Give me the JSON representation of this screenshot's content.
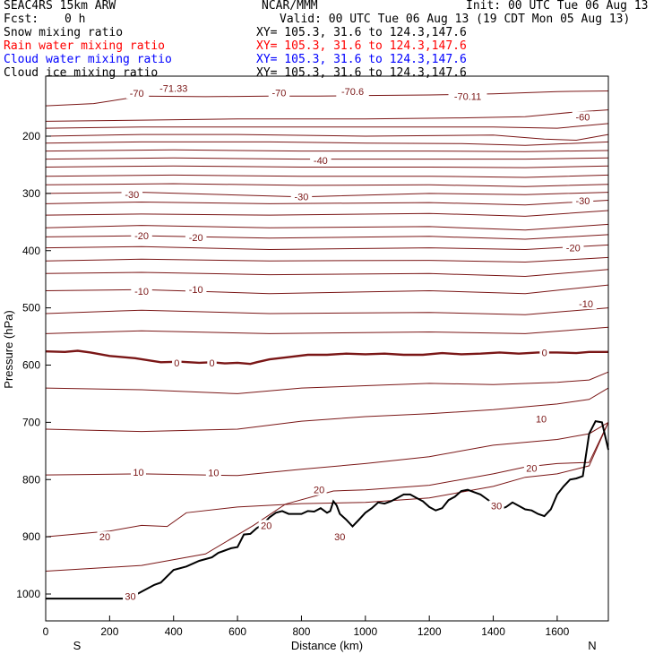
{
  "header": {
    "model": "SEAC4RS 15km ARW",
    "center": "NCAR/MMM",
    "init": "Init: 00 UTC Tue 06 Aug 13",
    "fcst_label": "Fcst:",
    "fcst_value": "0 h",
    "valid": "Valid: 00 UTC Tue 06 Aug 13 (19 CDT Mon 05 Aug 13)",
    "fields": [
      {
        "name": "Snow mixing ratio",
        "xy": "XY= 105.3, 31.6 to 124.3,147.6",
        "color": "#000000"
      },
      {
        "name": "Rain water mixing ratio",
        "xy": "XY= 105.3, 31.6 to 124.3,147.6",
        "color": "#ff0000"
      },
      {
        "name": "Cloud water mixing ratio",
        "xy": "XY= 105.3, 31.6 to 124.3,147.6",
        "color": "#0000ff"
      },
      {
        "name": "Cloud ice mixing ratio",
        "xy": "XY= 105.3, 31.6 to 124.3,147.6",
        "color": "#000000"
      }
    ]
  },
  "chart_data": {
    "type": "line",
    "xlabel": "Distance (km)",
    "ylabel": "Pressure (hPa)",
    "xlim": [
      0,
      1760
    ],
    "ylim": [
      1050,
      100
    ],
    "x_ticks": [
      0,
      200,
      400,
      600,
      800,
      1000,
      1200,
      1400,
      1600
    ],
    "y_ticks": [
      200,
      300,
      400,
      500,
      600,
      700,
      800,
      900,
      1000
    ],
    "y_tick_labels_visible": [
      "200",
      "300",
      "400",
      "500",
      "600",
      "700",
      "800",
      "900",
      "1000"
    ],
    "x_end_labels": {
      "left": "S",
      "right": "N"
    },
    "contour_color": "#7a1616",
    "terrain_color": "#000000",
    "contour_labels": [
      {
        "text": "-71.33",
        "x": 400,
        "p": 116
      },
      {
        "text": "-70",
        "x": 290,
        "p": 125
      },
      {
        "text": "-70",
        "x": 730,
        "p": 124
      },
      {
        "text": "-70.6",
        "x": 960,
        "p": 122
      },
      {
        "text": "-70.11",
        "x": 1320,
        "p": 130
      },
      {
        "text": "-70",
        "x": 285,
        "p": 125
      },
      {
        "text": "-60",
        "x": 1680,
        "p": 166
      },
      {
        "text": "-40",
        "x": 860,
        "p": 242
      },
      {
        "text": "-30",
        "x": 270,
        "p": 302
      },
      {
        "text": "-30",
        "x": 800,
        "p": 306
      },
      {
        "text": "-30",
        "x": 1680,
        "p": 313
      },
      {
        "text": "-20",
        "x": 300,
        "p": 374
      },
      {
        "text": "-20",
        "x": 470,
        "p": 377
      },
      {
        "text": "-20",
        "x": 1650,
        "p": 395
      },
      {
        "text": "-10",
        "x": 300,
        "p": 471
      },
      {
        "text": "-10",
        "x": 470,
        "p": 468
      },
      {
        "text": "-10",
        "x": 1690,
        "p": 493
      },
      {
        "text": "0",
        "x": 410,
        "p": 596
      },
      {
        "text": "0",
        "x": 520,
        "p": 596
      },
      {
        "text": "0",
        "x": 1560,
        "p": 578
      },
      {
        "text": "10",
        "x": 1550,
        "p": 694
      },
      {
        "text": "10",
        "x": 290,
        "p": 787
      },
      {
        "text": "10",
        "x": 525,
        "p": 788
      },
      {
        "text": "20",
        "x": 1520,
        "p": 780
      },
      {
        "text": "20",
        "x": 855,
        "p": 818
      },
      {
        "text": "20",
        "x": 690,
        "p": 880
      },
      {
        "text": "20",
        "x": 185,
        "p": 900
      },
      {
        "text": "30",
        "x": 1410,
        "p": 846
      },
      {
        "text": "30",
        "x": 920,
        "p": 900
      },
      {
        "text": "30",
        "x": 265,
        "p": 1004
      }
    ],
    "zero_isotherm": [
      [
        0,
        576
      ],
      [
        60,
        577
      ],
      [
        100,
        575
      ],
      [
        140,
        578
      ],
      [
        200,
        584
      ],
      [
        280,
        588
      ],
      [
        360,
        595
      ],
      [
        420,
        594
      ],
      [
        480,
        596
      ],
      [
        520,
        595
      ],
      [
        560,
        597
      ],
      [
        600,
        596
      ],
      [
        640,
        598
      ],
      [
        660,
        595
      ],
      [
        700,
        590
      ],
      [
        760,
        586
      ],
      [
        820,
        582
      ],
      [
        880,
        582
      ],
      [
        940,
        580
      ],
      [
        1000,
        581
      ],
      [
        1060,
        580
      ],
      [
        1120,
        582
      ],
      [
        1180,
        582
      ],
      [
        1240,
        579
      ],
      [
        1300,
        581
      ],
      [
        1360,
        580
      ],
      [
        1420,
        578
      ],
      [
        1480,
        580
      ],
      [
        1540,
        578
      ],
      [
        1600,
        578
      ],
      [
        1660,
        579
      ],
      [
        1700,
        577
      ],
      [
        1760,
        577
      ]
    ],
    "isotherms": [
      [
        [
          0,
          147
        ],
        [
          150,
          143
        ],
        [
          300,
          130
        ],
        [
          500,
          131
        ],
        [
          700,
          130
        ],
        [
          850,
          130
        ],
        [
          1000,
          129
        ],
        [
          1200,
          128
        ],
        [
          1400,
          126
        ],
        [
          1600,
          122
        ],
        [
          1760,
          121
        ]
      ],
      [
        [
          0,
          174
        ],
        [
          300,
          172
        ],
        [
          600,
          170
        ],
        [
          1000,
          170
        ],
        [
          1300,
          168
        ],
        [
          1500,
          166
        ],
        [
          1650,
          158
        ],
        [
          1760,
          154
        ]
      ],
      [
        [
          0,
          186
        ],
        [
          300,
          184
        ],
        [
          600,
          184
        ],
        [
          1000,
          184
        ],
        [
          1400,
          184
        ],
        [
          1600,
          186
        ],
        [
          1760,
          178
        ]
      ],
      [
        [
          0,
          200
        ],
        [
          300,
          197
        ],
        [
          600,
          197
        ],
        [
          1000,
          200
        ],
        [
          1400,
          198
        ],
        [
          1560,
          205
        ],
        [
          1660,
          207
        ],
        [
          1760,
          197
        ]
      ],
      [
        [
          0,
          212
        ],
        [
          300,
          210
        ],
        [
          700,
          210
        ],
        [
          1000,
          212
        ],
        [
          1300,
          213
        ],
        [
          1500,
          216
        ],
        [
          1760,
          210
        ]
      ],
      [
        [
          0,
          226
        ],
        [
          400,
          224
        ],
        [
          800,
          226
        ],
        [
          1200,
          226
        ],
        [
          1500,
          227
        ],
        [
          1760,
          225
        ]
      ],
      [
        [
          0,
          240
        ],
        [
          400,
          238
        ],
        [
          800,
          240
        ],
        [
          1200,
          240
        ],
        [
          1500,
          240
        ],
        [
          1760,
          238
        ]
      ],
      [
        [
          0,
          254
        ],
        [
          400,
          252
        ],
        [
          800,
          254
        ],
        [
          1200,
          254
        ],
        [
          1500,
          255
        ],
        [
          1760,
          252
        ]
      ],
      [
        [
          0,
          270
        ],
        [
          400,
          268
        ],
        [
          800,
          270
        ],
        [
          1200,
          270
        ],
        [
          1500,
          272
        ],
        [
          1760,
          268
        ]
      ],
      [
        [
          0,
          285
        ],
        [
          400,
          283
        ],
        [
          800,
          286
        ],
        [
          1200,
          285
        ],
        [
          1500,
          288
        ],
        [
          1760,
          284
        ]
      ],
      [
        [
          0,
          300
        ],
        [
          300,
          298
        ],
        [
          800,
          306
        ],
        [
          1200,
          300
        ],
        [
          1500,
          302
        ],
        [
          1760,
          298
        ]
      ],
      [
        [
          0,
          318
        ],
        [
          300,
          315
        ],
        [
          700,
          318
        ],
        [
          1200,
          316
        ],
        [
          1500,
          320
        ],
        [
          1760,
          312
        ]
      ],
      [
        [
          0,
          338
        ],
        [
          300,
          336
        ],
        [
          700,
          338
        ],
        [
          1200,
          335
        ],
        [
          1500,
          340
        ],
        [
          1760,
          330
        ]
      ],
      [
        [
          0,
          360
        ],
        [
          300,
          356
        ],
        [
          700,
          360
        ],
        [
          1200,
          358
        ],
        [
          1500,
          364
        ],
        [
          1760,
          354
        ]
      ],
      [
        [
          0,
          376
        ],
        [
          300,
          374
        ],
        [
          700,
          378
        ],
        [
          1200,
          375
        ],
        [
          1500,
          380
        ],
        [
          1760,
          372
        ]
      ],
      [
        [
          0,
          395
        ],
        [
          300,
          393
        ],
        [
          700,
          398
        ],
        [
          1200,
          395
        ],
        [
          1500,
          398
        ],
        [
          1760,
          390
        ]
      ],
      [
        [
          0,
          418
        ],
        [
          300,
          415
        ],
        [
          700,
          418
        ],
        [
          1200,
          417
        ],
        [
          1500,
          420
        ],
        [
          1760,
          412
        ]
      ],
      [
        [
          0,
          440
        ],
        [
          300,
          438
        ],
        [
          700,
          442
        ],
        [
          1200,
          440
        ],
        [
          1500,
          445
        ],
        [
          1760,
          433
        ]
      ],
      [
        [
          0,
          470
        ],
        [
          300,
          468
        ],
        [
          700,
          475
        ],
        [
          1200,
          470
        ],
        [
          1500,
          475
        ],
        [
          1760,
          460
        ]
      ],
      [
        [
          0,
          510
        ],
        [
          300,
          504
        ],
        [
          700,
          510
        ],
        [
          1200,
          508
        ],
        [
          1500,
          512
        ],
        [
          1760,
          500
        ]
      ],
      [
        [
          0,
          545
        ],
        [
          300,
          540
        ],
        [
          700,
          545
        ],
        [
          1200,
          542
        ],
        [
          1500,
          545
        ],
        [
          1760,
          534
        ]
      ],
      [
        [
          0,
          640
        ],
        [
          300,
          643
        ],
        [
          600,
          650
        ],
        [
          800,
          640
        ],
        [
          1000,
          636
        ],
        [
          1200,
          632
        ],
        [
          1400,
          634
        ],
        [
          1600,
          630
        ],
        [
          1700,
          626
        ],
        [
          1760,
          612
        ]
      ],
      [
        [
          0,
          712
        ],
        [
          300,
          716
        ],
        [
          600,
          712
        ],
        [
          800,
          698
        ],
        [
          1000,
          690
        ],
        [
          1200,
          685
        ],
        [
          1400,
          678
        ],
        [
          1600,
          668
        ],
        [
          1700,
          660
        ],
        [
          1760,
          640
        ]
      ],
      [
        [
          0,
          792
        ],
        [
          300,
          790
        ],
        [
          600,
          793
        ],
        [
          800,
          782
        ],
        [
          1000,
          772
        ],
        [
          1200,
          760
        ],
        [
          1400,
          740
        ],
        [
          1600,
          730
        ],
        [
          1700,
          720
        ],
        [
          1760,
          700
        ]
      ],
      [
        [
          0,
          900
        ],
        [
          200,
          890
        ],
        [
          300,
          880
        ],
        [
          380,
          882
        ],
        [
          440,
          858
        ],
        [
          600,
          848
        ],
        [
          700,
          845
        ],
        [
          800,
          842
        ],
        [
          1000,
          840
        ],
        [
          1200,
          832
        ],
        [
          1400,
          812
        ],
        [
          1500,
          796
        ],
        [
          1600,
          790
        ],
        [
          1700,
          776
        ],
        [
          1760,
          700
        ]
      ],
      [
        [
          0,
          960
        ],
        [
          300,
          950
        ],
        [
          500,
          930
        ],
        [
          650,
          880
        ],
        [
          750,
          843
        ],
        [
          900,
          820
        ],
        [
          1000,
          818
        ],
        [
          1200,
          810
        ],
        [
          1400,
          790
        ],
        [
          1500,
          778
        ],
        [
          1600,
          772
        ],
        [
          1700,
          770
        ],
        [
          1760,
          700
        ]
      ]
    ],
    "terrain": [
      [
        0,
        1008
      ],
      [
        100,
        1008
      ],
      [
        200,
        1008
      ],
      [
        260,
        1008
      ],
      [
        300,
        996
      ],
      [
        340,
        984
      ],
      [
        360,
        980
      ],
      [
        400,
        958
      ],
      [
        440,
        952
      ],
      [
        480,
        942
      ],
      [
        520,
        936
      ],
      [
        540,
        928
      ],
      [
        560,
        924
      ],
      [
        580,
        920
      ],
      [
        600,
        918
      ],
      [
        620,
        896
      ],
      [
        640,
        895
      ],
      [
        660,
        885
      ],
      [
        680,
        878
      ],
      [
        700,
        866
      ],
      [
        720,
        858
      ],
      [
        740,
        855
      ],
      [
        760,
        860
      ],
      [
        780,
        860
      ],
      [
        800,
        860
      ],
      [
        820,
        855
      ],
      [
        840,
        856
      ],
      [
        860,
        850
      ],
      [
        880,
        858
      ],
      [
        890,
        855
      ],
      [
        900,
        838
      ],
      [
        910,
        845
      ],
      [
        920,
        860
      ],
      [
        940,
        870
      ],
      [
        960,
        882
      ],
      [
        980,
        870
      ],
      [
        1000,
        858
      ],
      [
        1020,
        850
      ],
      [
        1040,
        840
      ],
      [
        1060,
        842
      ],
      [
        1080,
        838
      ],
      [
        1100,
        832
      ],
      [
        1120,
        826
      ],
      [
        1140,
        826
      ],
      [
        1160,
        832
      ],
      [
        1180,
        838
      ],
      [
        1200,
        848
      ],
      [
        1220,
        854
      ],
      [
        1240,
        850
      ],
      [
        1260,
        836
      ],
      [
        1280,
        830
      ],
      [
        1300,
        820
      ],
      [
        1320,
        818
      ],
      [
        1340,
        822
      ],
      [
        1360,
        826
      ],
      [
        1380,
        834
      ],
      [
        1400,
        842
      ],
      [
        1420,
        852
      ],
      [
        1440,
        848
      ],
      [
        1460,
        840
      ],
      [
        1480,
        846
      ],
      [
        1500,
        852
      ],
      [
        1520,
        854
      ],
      [
        1540,
        860
      ],
      [
        1560,
        864
      ],
      [
        1580,
        852
      ],
      [
        1600,
        826
      ],
      [
        1620,
        812
      ],
      [
        1640,
        800
      ],
      [
        1660,
        798
      ],
      [
        1680,
        794
      ],
      [
        1700,
        720
      ],
      [
        1720,
        698
      ],
      [
        1740,
        700
      ],
      [
        1760,
        748
      ]
    ]
  }
}
